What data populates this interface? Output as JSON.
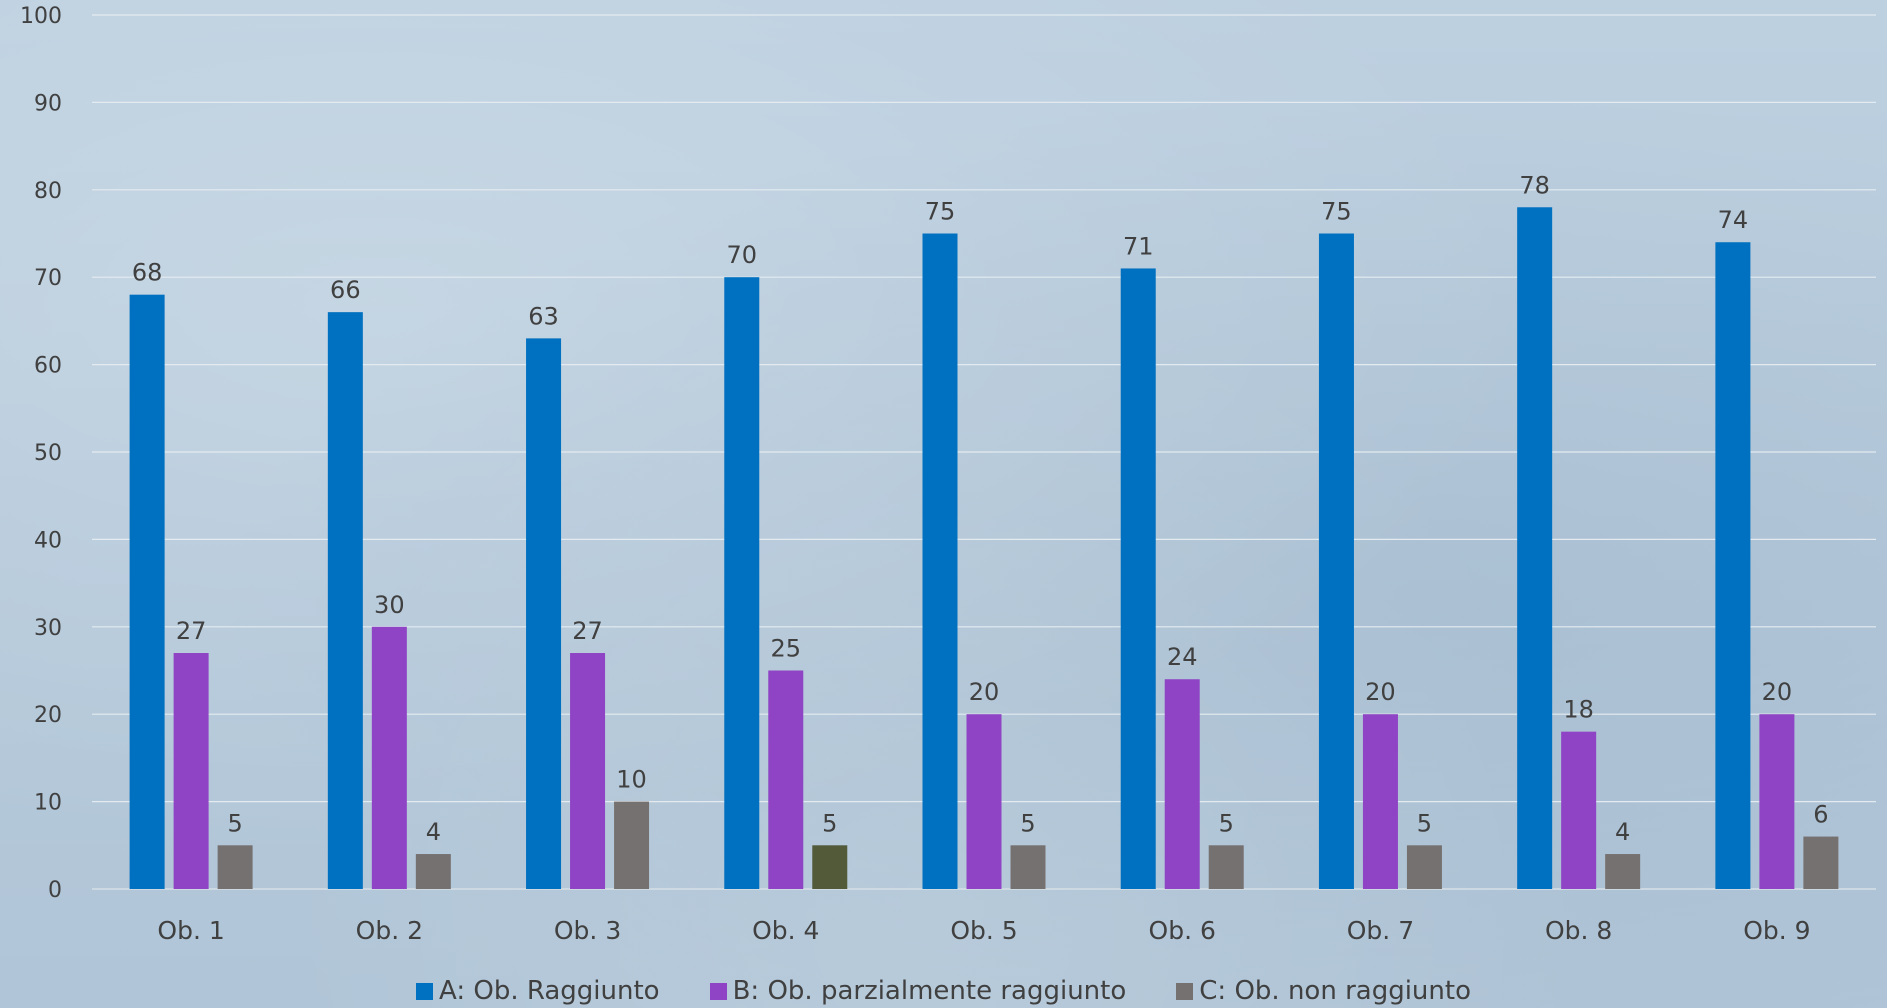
{
  "chart_data": {
    "type": "bar",
    "title": "",
    "xlabel": "",
    "ylabel": "",
    "ylim": [
      0,
      100
    ],
    "yticks": [
      0,
      10,
      20,
      30,
      40,
      50,
      60,
      70,
      80,
      90,
      100
    ],
    "grid": true,
    "legend_position": "bottom",
    "categories": [
      "Ob. 1",
      "Ob. 2",
      "Ob. 3",
      "Ob. 4",
      "Ob. 5",
      "Ob. 6",
      "Ob. 7",
      "Ob. 8",
      "Ob. 9"
    ],
    "series": [
      {
        "name": "A: Ob. Raggiunto",
        "color": "#0070c0",
        "values": [
          68,
          66,
          63,
          70,
          75,
          71,
          75,
          78,
          74
        ],
        "labels": [
          "68",
          "66",
          "63",
          "70",
          "75",
          "71",
          "75",
          "78",
          "74"
        ]
      },
      {
        "name": "B: Ob. parzialmente raggiunto",
        "color": "#8e44c4",
        "values": [
          27,
          30,
          27,
          25,
          20,
          24,
          20,
          18,
          20
        ],
        "labels": [
          "27",
          "30",
          "27",
          "25",
          "20",
          "24",
          "20",
          "18",
          "20"
        ]
      },
      {
        "name": "C: Ob. non raggiunto",
        "color": "#767171",
        "values": [
          5,
          4,
          10,
          5,
          5,
          5,
          5,
          4,
          6
        ],
        "labels": [
          "5",
          "4",
          "10",
          "5",
          "5",
          "5",
          "5",
          "4",
          "6"
        ],
        "point_colors": {
          "3": "#525a3a"
        }
      }
    ]
  }
}
